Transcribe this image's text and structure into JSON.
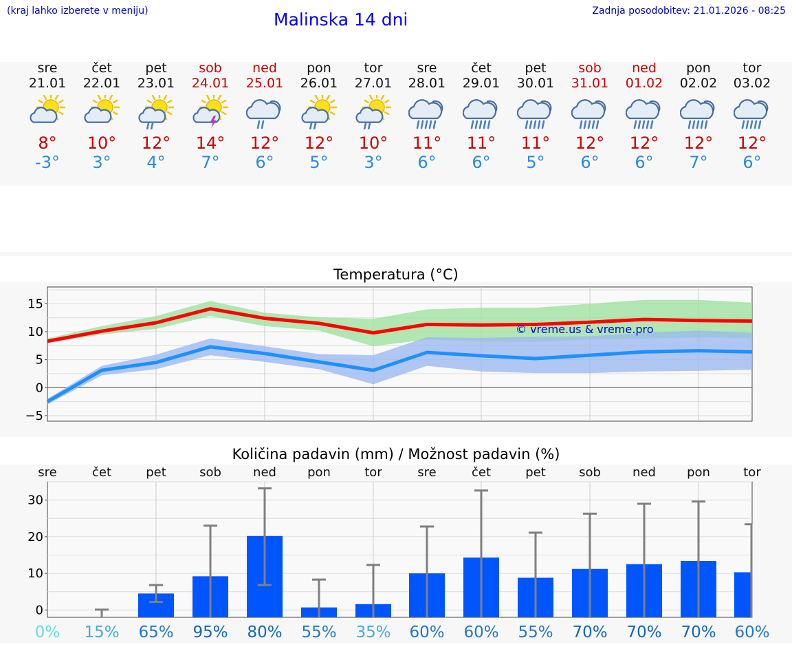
{
  "header": {
    "note": "(kraj lahko izberete v meniju)",
    "title": "Malinska 14 dni",
    "updated": "Zadnja posodobitev: 21.01.2026 - 08:25"
  },
  "days": [
    {
      "name": "sre",
      "date": "21.01",
      "weekend": false,
      "icon": "sun-cloud",
      "max": "8°",
      "min": "-3°"
    },
    {
      "name": "čet",
      "date": "22.01",
      "weekend": false,
      "icon": "sun-cloud",
      "max": "10°",
      "min": "3°"
    },
    {
      "name": "pet",
      "date": "23.01",
      "weekend": false,
      "icon": "sun-cloud-rain",
      "max": "12°",
      "min": "4°"
    },
    {
      "name": "sob",
      "date": "24.01",
      "weekend": true,
      "icon": "sun-cloud-storm",
      "max": "14°",
      "min": "7°"
    },
    {
      "name": "ned",
      "date": "25.01",
      "weekend": true,
      "icon": "cloud-rain",
      "max": "12°",
      "min": "6°"
    },
    {
      "name": "pon",
      "date": "26.01",
      "weekend": false,
      "icon": "sun-cloud-rain",
      "max": "12°",
      "min": "5°"
    },
    {
      "name": "tor",
      "date": "27.01",
      "weekend": false,
      "icon": "sun-cloud-rain",
      "max": "10°",
      "min": "3°"
    },
    {
      "name": "sre",
      "date": "28.01",
      "weekend": false,
      "icon": "cloud-heavy-rain",
      "max": "11°",
      "min": "6°"
    },
    {
      "name": "čet",
      "date": "29.01",
      "weekend": false,
      "icon": "cloud-heavy-rain",
      "max": "11°",
      "min": "6°"
    },
    {
      "name": "pet",
      "date": "30.01",
      "weekend": false,
      "icon": "cloud-heavy-rain",
      "max": "11°",
      "min": "5°"
    },
    {
      "name": "sob",
      "date": "31.01",
      "weekend": true,
      "icon": "cloud-heavy-rain",
      "max": "12°",
      "min": "6°"
    },
    {
      "name": "ned",
      "date": "01.02",
      "weekend": true,
      "icon": "cloud-heavy-rain",
      "max": "12°",
      "min": "6°"
    },
    {
      "name": "pon",
      "date": "02.02",
      "weekend": false,
      "icon": "cloud-heavy-rain",
      "max": "12°",
      "min": "7°"
    },
    {
      "name": "tor",
      "date": "03.02",
      "weekend": false,
      "icon": "cloud-heavy-rain",
      "max": "12°",
      "min": "6°"
    }
  ],
  "chart_data": [
    {
      "type": "line",
      "title": "Temperatura (°C)",
      "watermark": "© vreme.us & vreme.pro",
      "ylim": [
        -6,
        18
      ],
      "yticks": [
        15,
        10,
        5,
        0,
        -5
      ],
      "x": [
        0,
        1,
        2,
        3,
        4,
        5,
        6,
        7,
        8,
        9,
        10,
        11,
        12,
        13
      ],
      "series": [
        {
          "name": "max",
          "color": "#ff0000",
          "values": [
            8.3,
            10.1,
            11.6,
            14.1,
            12.4,
            11.5,
            9.8,
            11.3,
            11.2,
            11.3,
            11.7,
            12.2,
            12.0,
            11.9
          ],
          "band_low": [
            8.0,
            9.5,
            10.5,
            12.8,
            11.0,
            10.2,
            7.4,
            8.6,
            8.3,
            8.2,
            8.6,
            8.8,
            9.0,
            8.9
          ],
          "band_high": [
            8.8,
            11.0,
            12.8,
            15.5,
            13.4,
            12.6,
            12.3,
            14.0,
            14.3,
            14.3,
            15.0,
            15.7,
            15.7,
            15.2
          ]
        },
        {
          "name": "min",
          "color": "#1e90ff",
          "values": [
            -2.5,
            3.1,
            4.5,
            7.3,
            6.1,
            4.6,
            3.1,
            6.3,
            5.7,
            5.2,
            5.8,
            6.4,
            6.6,
            6.4
          ],
          "band_low": [
            -3.0,
            2.2,
            3.3,
            5.8,
            4.6,
            3.3,
            0.6,
            3.9,
            2.9,
            2.6,
            2.6,
            2.9,
            3.0,
            3.2
          ],
          "band_high": [
            -2.0,
            3.9,
            5.9,
            8.8,
            7.4,
            6.0,
            5.8,
            9.0,
            8.9,
            9.1,
            9.2,
            9.8,
            10.2,
            9.8
          ]
        }
      ]
    },
    {
      "type": "bar",
      "title": "Količina padavin (mm) / Možnost padavin (%)",
      "ylim": [
        -2,
        35
      ],
      "yticks": [
        30,
        20,
        10,
        0
      ],
      "categories": [
        "sre",
        "čet",
        "pet",
        "sob",
        "ned",
        "pon",
        "tor",
        "sre",
        "čet",
        "pet",
        "sob",
        "ned",
        "pon",
        "tor"
      ],
      "values": [
        0,
        0,
        4.5,
        9.2,
        20.2,
        0.7,
        1.6,
        10.0,
        14.3,
        8.8,
        11.2,
        12.5,
        13.4,
        10.3
      ],
      "err_low": [
        0,
        0,
        2.2,
        0,
        6.8,
        0,
        0,
        0,
        0,
        0,
        0,
        0,
        0,
        0
      ],
      "err_high": [
        0,
        0.1,
        6.8,
        23.0,
        33.2,
        8.3,
        12.3,
        22.8,
        32.6,
        21.1,
        26.3,
        29.0,
        29.6,
        23.4
      ],
      "bar_color": "#0055ff",
      "probabilities": [
        "0%",
        "15%",
        "65%",
        "95%",
        "80%",
        "55%",
        "35%",
        "60%",
        "60%",
        "55%",
        "70%",
        "70%",
        "70%",
        "60%"
      ],
      "prob_colors": [
        "#66dddd",
        "#44aadd",
        "#2277cc",
        "#1166bb",
        "#1166bb",
        "#2277cc",
        "#44aadd",
        "#2277cc",
        "#2277cc",
        "#2277cc",
        "#1166bb",
        "#1166bb",
        "#1166bb",
        "#2277cc"
      ]
    }
  ]
}
